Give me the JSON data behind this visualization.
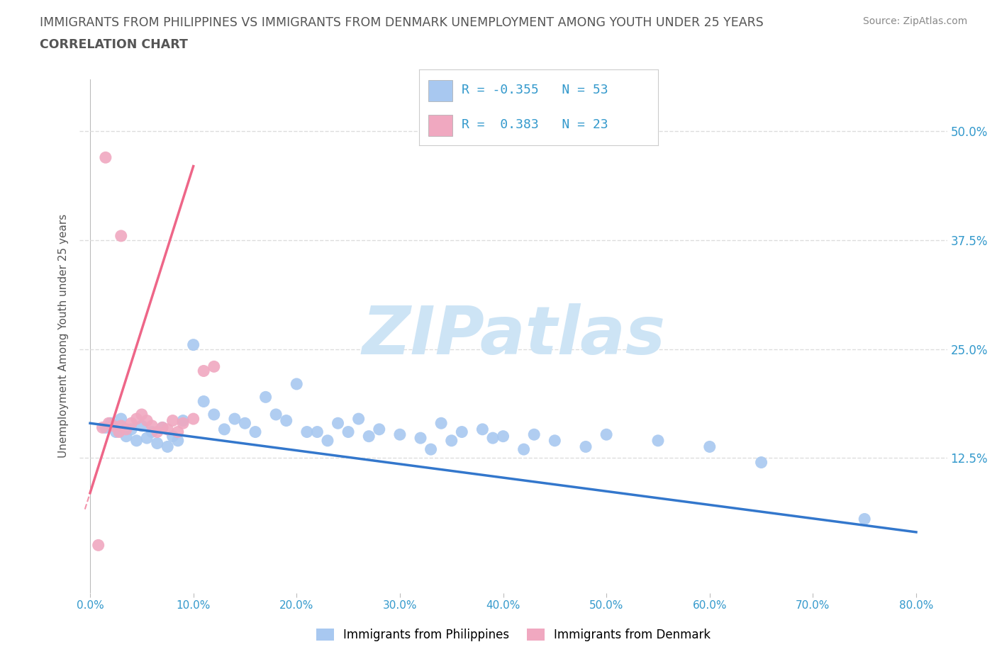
{
  "title_line1": "IMMIGRANTS FROM PHILIPPINES VS IMMIGRANTS FROM DENMARK UNEMPLOYMENT AMONG YOUTH UNDER 25 YEARS",
  "title_line2": "CORRELATION CHART",
  "source_text": "Source: ZipAtlas.com",
  "ylabel": "Unemployment Among Youth under 25 years",
  "y_ticks": [
    0.0,
    0.125,
    0.25,
    0.375,
    0.5
  ],
  "y_tick_labels": [
    "",
    "12.5%",
    "25.0%",
    "37.5%",
    "50.0%"
  ],
  "xlim": [
    -1,
    83
  ],
  "ylim": [
    -0.03,
    0.56
  ],
  "philippines_color": "#a8c8f0",
  "denmark_color": "#f0a8c0",
  "philippines_trend_color": "#3377cc",
  "denmark_trend_color": "#ee6688",
  "legend_label_philippines": "Immigrants from Philippines",
  "legend_label_denmark": "Immigrants from Denmark",
  "watermark": "ZIPatlas",
  "watermark_color": "#cde4f5",
  "bg_color": "#ffffff",
  "grid_color": "#dddddd",
  "title_color": "#555555",
  "axis_color": "#3399cc",
  "right_yaxis_color": "#3399cc",
  "phil_trend_x0": 0,
  "phil_trend_x1": 80,
  "phil_trend_y0": 0.165,
  "phil_trend_y1": 0.04,
  "den_trend_x0": 0,
  "den_trend_x1": 10,
  "den_trend_y0": 0.085,
  "den_trend_y1": 0.46,
  "den_trend_ext_x0": 0,
  "den_trend_ext_x1": 15,
  "den_trend_ext_y0": 0.085,
  "den_trend_ext_y1": 0.56
}
